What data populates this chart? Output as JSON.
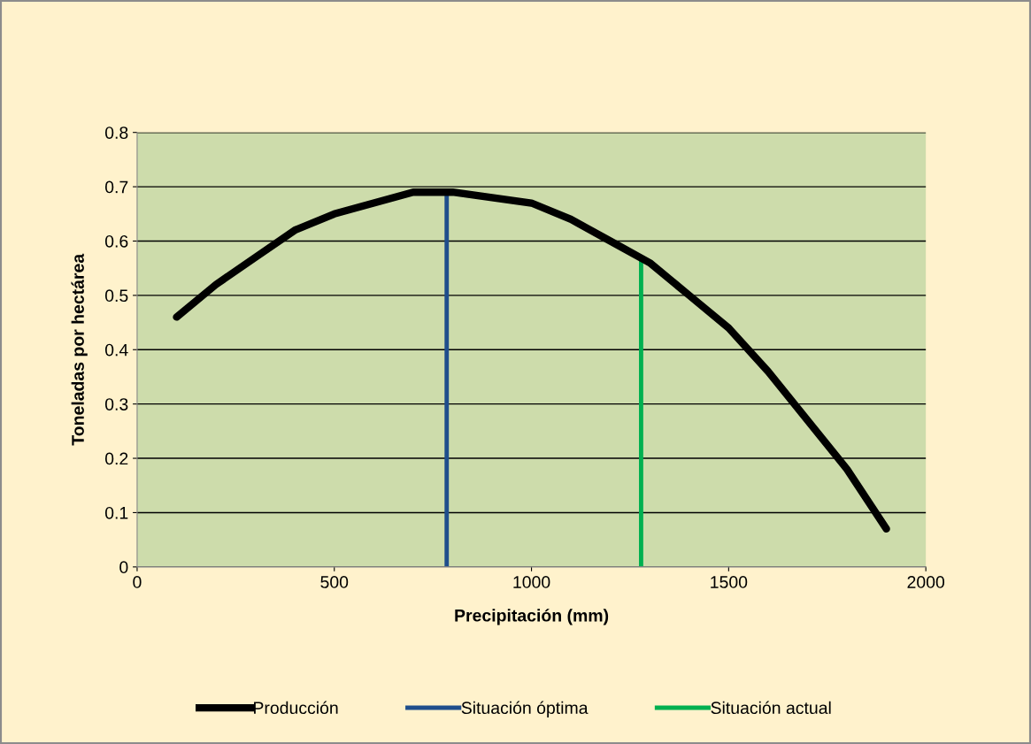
{
  "chart_data": {
    "type": "line",
    "xlabel": "Precipitación (mm)",
    "ylabel": "Toneladas por hectárea",
    "xlim": [
      0,
      2000
    ],
    "xticks": [
      0,
      500,
      1000,
      1500,
      2000
    ],
    "ylim": [
      0,
      0.8
    ],
    "yticks": [
      0,
      0.1,
      0.2,
      0.3,
      0.4,
      0.5,
      0.6,
      0.7,
      0.8
    ],
    "grid": "y",
    "legend": "bottom",
    "marker": "none",
    "line_style": "solid",
    "series": [
      {
        "name": "Producción",
        "color": "#000000",
        "x": [
          100,
          200,
          300,
          400,
          500,
          600,
          700,
          800,
          900,
          1000,
          1100,
          1200,
          1300,
          1400,
          1500,
          1600,
          1700,
          1800,
          1900
        ],
        "values": [
          0.46,
          0.52,
          0.57,
          0.62,
          0.65,
          0.67,
          0.69,
          0.69,
          0.68,
          0.67,
          0.64,
          0.6,
          0.56,
          0.5,
          0.44,
          0.36,
          0.27,
          0.18,
          0.07
        ]
      },
      {
        "name": "Situación óptima",
        "color": "#1f4e8c",
        "x": [
          785,
          785
        ],
        "values": [
          0,
          0.69
        ]
      },
      {
        "name": "Situación actual",
        "color": "#00b050",
        "x": [
          1278,
          1278
        ],
        "values": [
          0,
          0.57
        ]
      }
    ]
  }
}
